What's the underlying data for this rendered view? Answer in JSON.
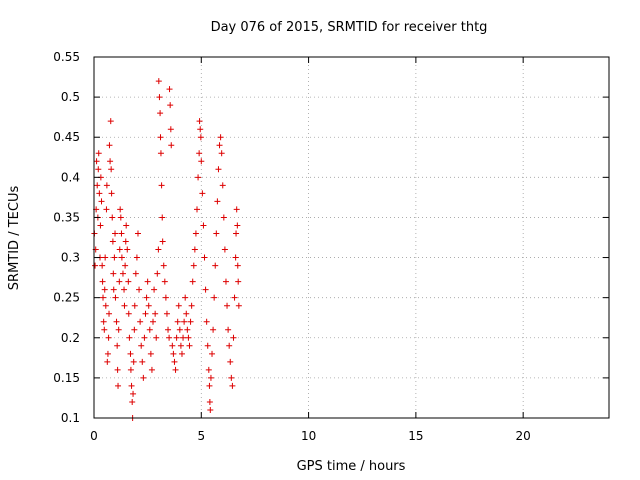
{
  "chart_data": {
    "type": "scatter",
    "title": "Day 076 of 2015, SRMTID for receiver thtg",
    "xlabel": "GPS time / hours",
    "ylabel": "SRMTID / TECUs",
    "xlim": [
      0,
      24
    ],
    "ylim": [
      0.1,
      0.55
    ],
    "xticks": [
      0,
      5,
      10,
      15,
      20
    ],
    "yticks": [
      0.1,
      0.15,
      0.2,
      0.25,
      0.3,
      0.35,
      0.4,
      0.45,
      0.5,
      0.55
    ],
    "ytick_labels": [
      "0.1",
      "0.15",
      "0.2",
      "0.25",
      "0.3",
      "0.35",
      "0.4",
      "0.45",
      "0.5",
      "0.55"
    ],
    "grid": true,
    "marker": "+",
    "color": "#dd0000",
    "points": [
      [
        0.02,
        0.33
      ],
      [
        0.05,
        0.29
      ],
      [
        0.08,
        0.31
      ],
      [
        0.1,
        0.36
      ],
      [
        0.12,
        0.42
      ],
      [
        0.15,
        0.39
      ],
      [
        0.18,
        0.35
      ],
      [
        0.2,
        0.41
      ],
      [
        0.22,
        0.43
      ],
      [
        0.25,
        0.38
      ],
      [
        0.28,
        0.3
      ],
      [
        0.3,
        0.34
      ],
      [
        0.32,
        0.4
      ],
      [
        0.35,
        0.37
      ],
      [
        0.38,
        0.29
      ],
      [
        0.4,
        0.27
      ],
      [
        0.42,
        0.25
      ],
      [
        0.45,
        0.22
      ],
      [
        0.48,
        0.21
      ],
      [
        0.5,
        0.26
      ],
      [
        0.52,
        0.3
      ],
      [
        0.55,
        0.24
      ],
      [
        0.58,
        0.36
      ],
      [
        0.6,
        0.39
      ],
      [
        0.62,
        0.17
      ],
      [
        0.65,
        0.18
      ],
      [
        0.68,
        0.2
      ],
      [
        0.7,
        0.23
      ],
      [
        0.72,
        0.44
      ],
      [
        0.75,
        0.42
      ],
      [
        0.78,
        0.47
      ],
      [
        0.8,
        0.41
      ],
      [
        0.82,
        0.38
      ],
      [
        0.85,
        0.35
      ],
      [
        0.88,
        0.32
      ],
      [
        0.9,
        0.28
      ],
      [
        0.92,
        0.26
      ],
      [
        0.95,
        0.3
      ],
      [
        0.98,
        0.33
      ],
      [
        1.0,
        0.25
      ],
      [
        1.05,
        0.22
      ],
      [
        1.08,
        0.19
      ],
      [
        1.1,
        0.16
      ],
      [
        1.12,
        0.14
      ],
      [
        1.15,
        0.21
      ],
      [
        1.18,
        0.27
      ],
      [
        1.2,
        0.31
      ],
      [
        1.22,
        0.36
      ],
      [
        1.25,
        0.35
      ],
      [
        1.28,
        0.33
      ],
      [
        1.3,
        0.3
      ],
      [
        1.35,
        0.28
      ],
      [
        1.4,
        0.26
      ],
      [
        1.42,
        0.24
      ],
      [
        1.45,
        0.29
      ],
      [
        1.48,
        0.32
      ],
      [
        1.5,
        0.34
      ],
      [
        1.55,
        0.31
      ],
      [
        1.6,
        0.27
      ],
      [
        1.62,
        0.23
      ],
      [
        1.65,
        0.2
      ],
      [
        1.7,
        0.18
      ],
      [
        1.72,
        0.16
      ],
      [
        1.75,
        0.14
      ],
      [
        1.78,
        0.12
      ],
      [
        1.8,
        0.1
      ],
      [
        1.82,
        0.13
      ],
      [
        1.85,
        0.17
      ],
      [
        1.88,
        0.21
      ],
      [
        1.9,
        0.24
      ],
      [
        1.95,
        0.28
      ],
      [
        2.0,
        0.3
      ],
      [
        2.05,
        0.33
      ],
      [
        2.1,
        0.26
      ],
      [
        2.15,
        0.22
      ],
      [
        2.2,
        0.19
      ],
      [
        2.25,
        0.17
      ],
      [
        2.3,
        0.15
      ],
      [
        2.35,
        0.2
      ],
      [
        2.4,
        0.23
      ],
      [
        2.45,
        0.25
      ],
      [
        2.5,
        0.27
      ],
      [
        2.55,
        0.24
      ],
      [
        2.6,
        0.21
      ],
      [
        2.65,
        0.18
      ],
      [
        2.7,
        0.16
      ],
      [
        2.75,
        0.22
      ],
      [
        2.8,
        0.26
      ],
      [
        2.85,
        0.23
      ],
      [
        2.9,
        0.2
      ],
      [
        2.95,
        0.28
      ],
      [
        3.0,
        0.31
      ],
      [
        3.02,
        0.52
      ],
      [
        3.05,
        0.5
      ],
      [
        3.08,
        0.48
      ],
      [
        3.1,
        0.45
      ],
      [
        3.12,
        0.43
      ],
      [
        3.15,
        0.39
      ],
      [
        3.18,
        0.35
      ],
      [
        3.2,
        0.32
      ],
      [
        3.25,
        0.29
      ],
      [
        3.3,
        0.27
      ],
      [
        3.35,
        0.25
      ],
      [
        3.4,
        0.23
      ],
      [
        3.45,
        0.21
      ],
      [
        3.5,
        0.2
      ],
      [
        3.52,
        0.51
      ],
      [
        3.55,
        0.49
      ],
      [
        3.58,
        0.46
      ],
      [
        3.6,
        0.44
      ],
      [
        3.65,
        0.19
      ],
      [
        3.7,
        0.18
      ],
      [
        3.75,
        0.17
      ],
      [
        3.8,
        0.16
      ],
      [
        3.85,
        0.2
      ],
      [
        3.9,
        0.22
      ],
      [
        3.95,
        0.24
      ],
      [
        4.0,
        0.21
      ],
      [
        4.05,
        0.19
      ],
      [
        4.1,
        0.18
      ],
      [
        4.15,
        0.2
      ],
      [
        4.2,
        0.22
      ],
      [
        4.25,
        0.25
      ],
      [
        4.3,
        0.23
      ],
      [
        4.35,
        0.21
      ],
      [
        4.4,
        0.2
      ],
      [
        4.45,
        0.19
      ],
      [
        4.5,
        0.22
      ],
      [
        4.55,
        0.24
      ],
      [
        4.6,
        0.27
      ],
      [
        4.65,
        0.29
      ],
      [
        4.7,
        0.31
      ],
      [
        4.75,
        0.33
      ],
      [
        4.8,
        0.36
      ],
      [
        4.85,
        0.4
      ],
      [
        4.9,
        0.43
      ],
      [
        4.92,
        0.47
      ],
      [
        4.95,
        0.46
      ],
      [
        4.98,
        0.45
      ],
      [
        5.0,
        0.42
      ],
      [
        5.05,
        0.38
      ],
      [
        5.1,
        0.34
      ],
      [
        5.15,
        0.3
      ],
      [
        5.2,
        0.26
      ],
      [
        5.25,
        0.22
      ],
      [
        5.3,
        0.19
      ],
      [
        5.35,
        0.16
      ],
      [
        5.38,
        0.14
      ],
      [
        5.4,
        0.12
      ],
      [
        5.42,
        0.11
      ],
      [
        5.45,
        0.15
      ],
      [
        5.5,
        0.18
      ],
      [
        5.55,
        0.21
      ],
      [
        5.6,
        0.25
      ],
      [
        5.65,
        0.29
      ],
      [
        5.7,
        0.33
      ],
      [
        5.75,
        0.37
      ],
      [
        5.8,
        0.41
      ],
      [
        5.85,
        0.44
      ],
      [
        5.9,
        0.45
      ],
      [
        5.95,
        0.43
      ],
      [
        6.0,
        0.39
      ],
      [
        6.05,
        0.35
      ],
      [
        6.1,
        0.31
      ],
      [
        6.15,
        0.27
      ],
      [
        6.2,
        0.24
      ],
      [
        6.25,
        0.21
      ],
      [
        6.3,
        0.19
      ],
      [
        6.35,
        0.17
      ],
      [
        6.4,
        0.15
      ],
      [
        6.45,
        0.14
      ],
      [
        6.5,
        0.2
      ],
      [
        6.55,
        0.25
      ],
      [
        6.6,
        0.3
      ],
      [
        6.62,
        0.33
      ],
      [
        6.65,
        0.36
      ],
      [
        6.68,
        0.34
      ],
      [
        6.7,
        0.29
      ],
      [
        6.72,
        0.27
      ],
      [
        6.75,
        0.24
      ]
    ]
  }
}
